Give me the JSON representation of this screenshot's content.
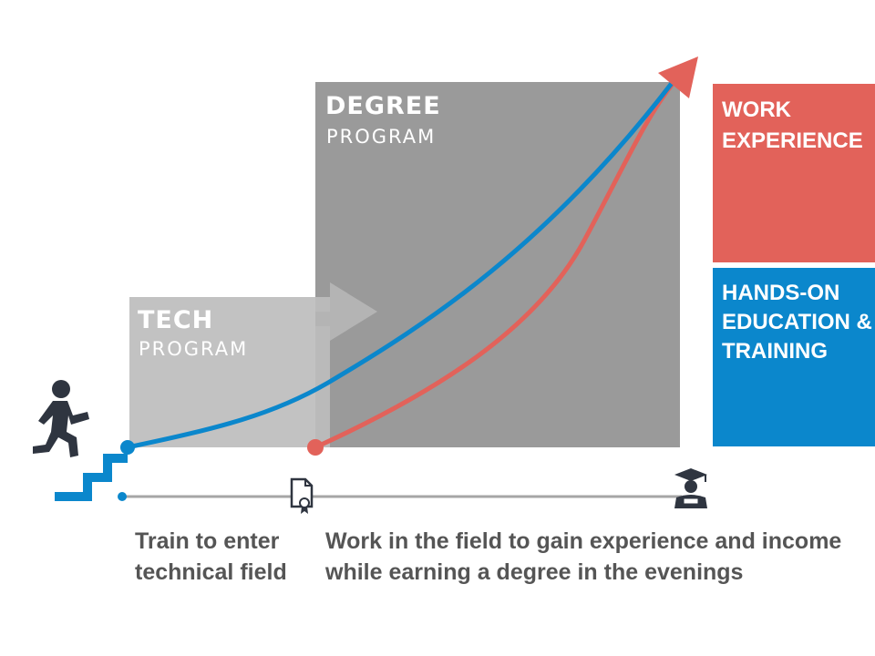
{
  "degree_box": {
    "title": "DEGREE",
    "subtitle": "PROGRAM"
  },
  "tech_box": {
    "title": "TECH",
    "subtitle": "PROGRAM"
  },
  "legend": {
    "work": {
      "label_line1": "WORK",
      "label_line2": "EXPERIENCE",
      "color": "#E2625A"
    },
    "education": {
      "label_line1": "HANDS-ON",
      "label_line2": "EDUCATION &",
      "label_line3": "TRAINING",
      "color": "#0B87CC"
    }
  },
  "captions": {
    "left_line1": "Train to enter",
    "left_line2": "technical field",
    "right_line1": "Work in the field to gain experience and income",
    "right_line2": "while earning a degree in the evenings"
  },
  "icons": [
    "person-climbing-stairs-icon",
    "certificate-icon",
    "graduate-icon"
  ],
  "colors": {
    "degree_box": "#9A9A9A",
    "tech_box": "#BDBDBD",
    "timeline": "#A6A6A6",
    "icon_dark": "#2F3540",
    "text": "#555555"
  }
}
